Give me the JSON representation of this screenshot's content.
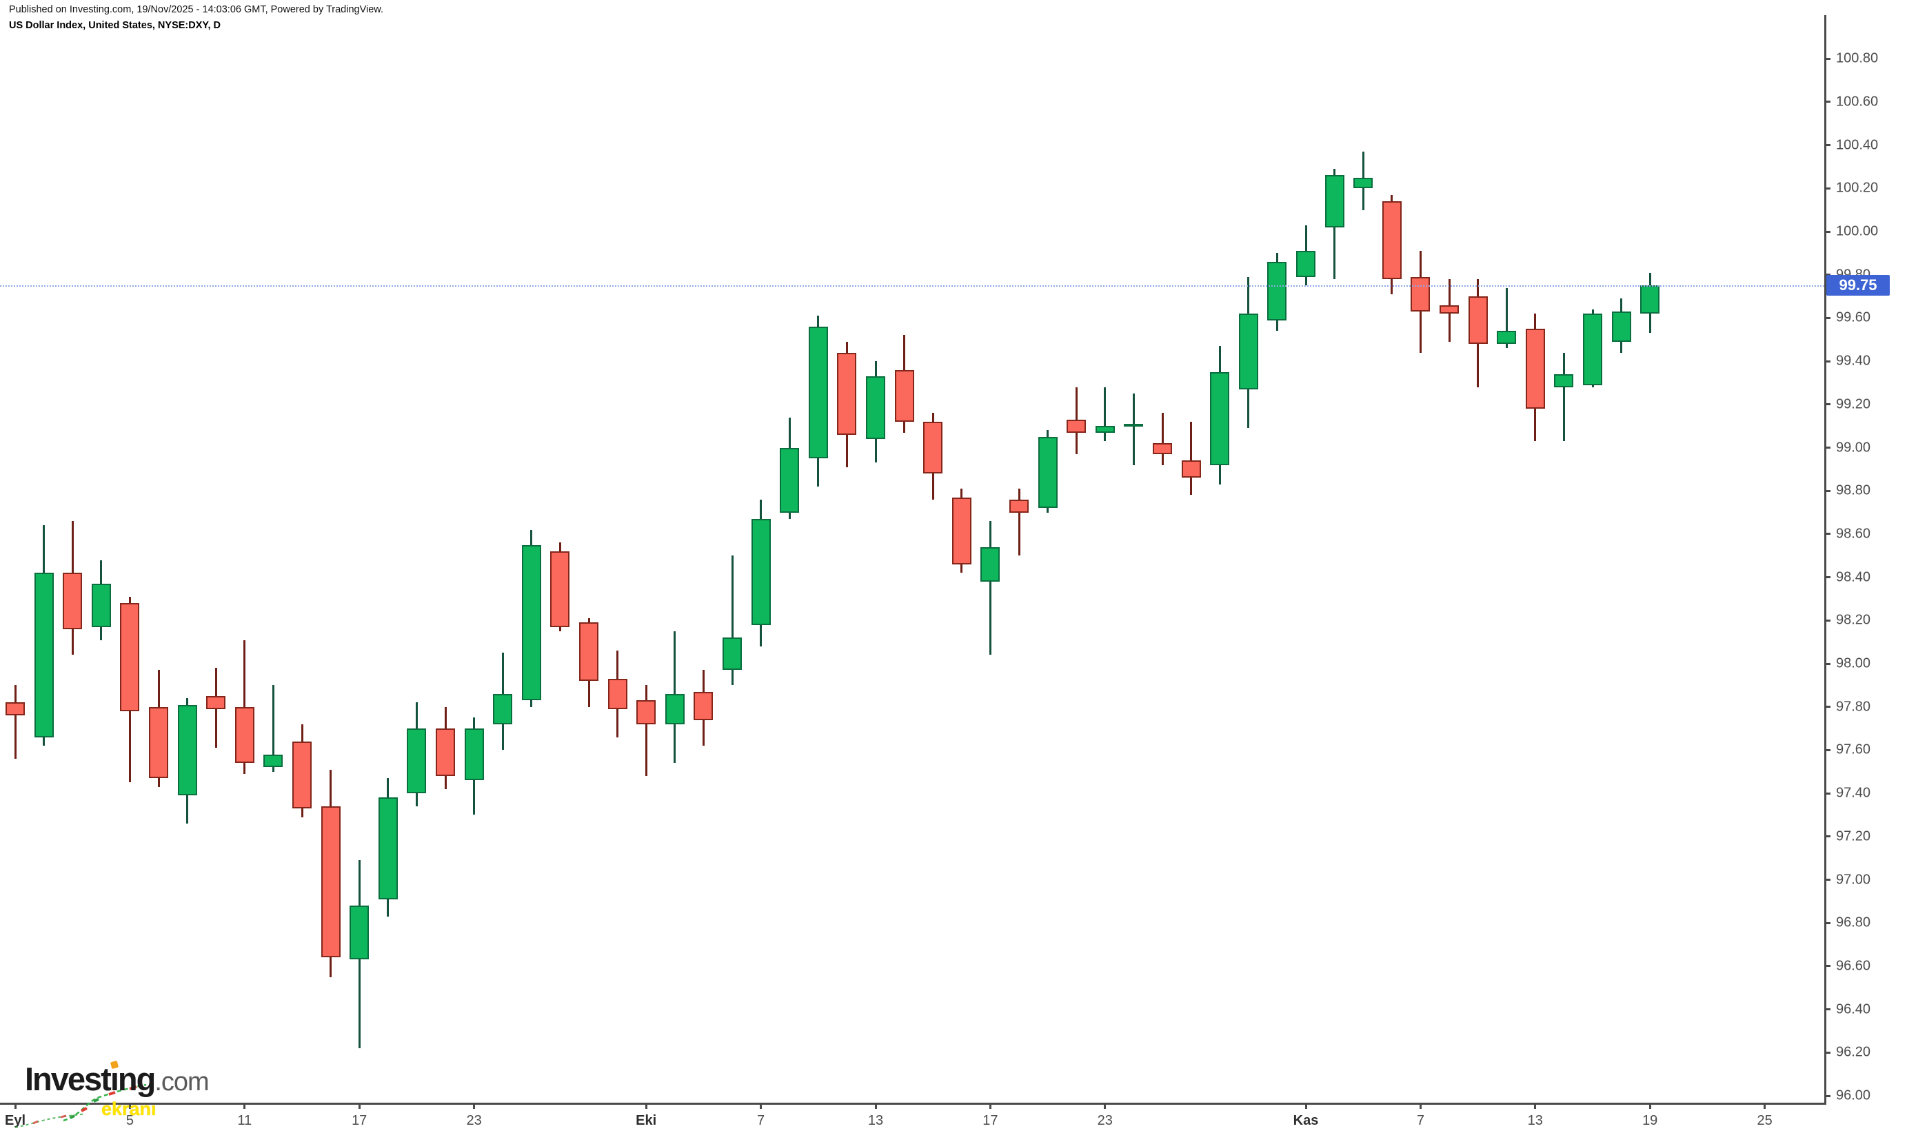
{
  "header": {
    "published_line": "Published on Investing.com, 19/Nov/2025 - 14:03:06 GMT, Powered by TradingView.",
    "instrument_line": "US Dollar Index, United States, NYSE:DXY, D"
  },
  "logo": {
    "main_text": "Investing",
    "suffix_text": ".com"
  },
  "watermark": {
    "text": "ekranı"
  },
  "price_label": {
    "value": "99.75"
  },
  "colors": {
    "up_body": "#0eb75b",
    "up_border": "#0a6e3f",
    "up_wick": "#14523c",
    "down_body": "#fb685c",
    "down_border": "#84261a",
    "down_wick": "#6e2017",
    "axis_line": "#4a4a4a",
    "badge_blue": "#3d63d4",
    "dotted_line": "#8fa8e6"
  },
  "chart_data": {
    "type": "candlestick",
    "title": "US Dollar Index, United States, NYSE:DXY, D",
    "symbol": "NYSE:DXY",
    "interval": "D",
    "legend_position": "none",
    "grid": false,
    "current_price": 99.75,
    "ylim": [
      96.0,
      100.8
    ],
    "y_tick_step": 0.2,
    "y_ticks": [
      "100.80",
      "100.60",
      "100.40",
      "100.20",
      "100.00",
      "99.80",
      "99.60",
      "99.40",
      "99.20",
      "99.00",
      "98.80",
      "98.60",
      "98.40",
      "98.20",
      "98.00",
      "97.80",
      "97.60",
      "97.40",
      "97.20",
      "97.00",
      "96.80",
      "96.60",
      "96.40",
      "96.20",
      "96.00"
    ],
    "x_ticks": [
      {
        "label": "Eyl",
        "index": 0,
        "bold": true
      },
      {
        "label": "5",
        "index": 4,
        "bold": false
      },
      {
        "label": "11",
        "index": 8,
        "bold": false
      },
      {
        "label": "17",
        "index": 12,
        "bold": false
      },
      {
        "label": "23",
        "index": 16,
        "bold": false
      },
      {
        "label": "Eki",
        "index": 22,
        "bold": true
      },
      {
        "label": "7",
        "index": 26,
        "bold": false
      },
      {
        "label": "13",
        "index": 30,
        "bold": false
      },
      {
        "label": "17",
        "index": 34,
        "bold": false
      },
      {
        "label": "23",
        "index": 38,
        "bold": false
      },
      {
        "label": "Kas",
        "index": 45,
        "bold": true
      },
      {
        "label": "7",
        "index": 49,
        "bold": false
      },
      {
        "label": "13",
        "index": 53,
        "bold": false
      },
      {
        "label": "19",
        "index": 57,
        "bold": false
      },
      {
        "label": "25",
        "index": 61,
        "bold": false
      }
    ],
    "total_slots": 64,
    "candles": [
      {
        "date": "2025-09-01",
        "o": 97.82,
        "h": 97.9,
        "l": 97.56,
        "c": 97.76
      },
      {
        "date": "2025-09-02",
        "o": 97.66,
        "h": 98.64,
        "l": 97.62,
        "c": 98.42
      },
      {
        "date": "2025-09-03",
        "o": 98.42,
        "h": 98.66,
        "l": 98.04,
        "c": 98.16
      },
      {
        "date": "2025-09-04",
        "o": 98.17,
        "h": 98.48,
        "l": 98.11,
        "c": 98.37
      },
      {
        "date": "2025-09-05",
        "o": 98.28,
        "h": 98.31,
        "l": 97.45,
        "c": 97.78
      },
      {
        "date": "2025-09-08",
        "o": 97.8,
        "h": 97.97,
        "l": 97.43,
        "c": 97.47
      },
      {
        "date": "2025-09-09",
        "o": 97.39,
        "h": 97.84,
        "l": 97.26,
        "c": 97.81
      },
      {
        "date": "2025-09-10",
        "o": 97.85,
        "h": 97.98,
        "l": 97.61,
        "c": 97.79
      },
      {
        "date": "2025-09-11",
        "o": 97.8,
        "h": 98.11,
        "l": 97.49,
        "c": 97.54
      },
      {
        "date": "2025-09-12",
        "o": 97.52,
        "h": 97.9,
        "l": 97.5,
        "c": 97.58
      },
      {
        "date": "2025-09-15",
        "o": 97.64,
        "h": 97.72,
        "l": 97.29,
        "c": 97.33
      },
      {
        "date": "2025-09-16",
        "o": 97.34,
        "h": 97.51,
        "l": 96.55,
        "c": 96.64
      },
      {
        "date": "2025-09-17",
        "o": 96.63,
        "h": 97.09,
        "l": 96.22,
        "c": 96.88
      },
      {
        "date": "2025-09-18",
        "o": 96.91,
        "h": 97.47,
        "l": 96.83,
        "c": 97.38
      },
      {
        "date": "2025-09-19",
        "o": 97.4,
        "h": 97.82,
        "l": 97.34,
        "c": 97.7
      },
      {
        "date": "2025-09-22",
        "o": 97.7,
        "h": 97.8,
        "l": 97.42,
        "c": 97.48
      },
      {
        "date": "2025-09-23",
        "o": 97.46,
        "h": 97.75,
        "l": 97.3,
        "c": 97.7
      },
      {
        "date": "2025-09-24",
        "o": 97.72,
        "h": 98.05,
        "l": 97.6,
        "c": 97.86
      },
      {
        "date": "2025-09-25",
        "o": 97.83,
        "h": 98.62,
        "l": 97.8,
        "c": 98.55
      },
      {
        "date": "2025-09-26",
        "o": 98.52,
        "h": 98.56,
        "l": 98.15,
        "c": 98.17
      },
      {
        "date": "2025-09-29",
        "o": 98.19,
        "h": 98.21,
        "l": 97.8,
        "c": 97.92
      },
      {
        "date": "2025-09-30",
        "o": 97.93,
        "h": 98.06,
        "l": 97.66,
        "c": 97.79
      },
      {
        "date": "2025-10-01",
        "o": 97.83,
        "h": 97.9,
        "l": 97.48,
        "c": 97.72
      },
      {
        "date": "2025-10-02",
        "o": 97.72,
        "h": 98.15,
        "l": 97.54,
        "c": 97.86
      },
      {
        "date": "2025-10-03",
        "o": 97.87,
        "h": 97.97,
        "l": 97.62,
        "c": 97.74
      },
      {
        "date": "2025-10-06",
        "o": 97.97,
        "h": 98.5,
        "l": 97.9,
        "c": 98.12
      },
      {
        "date": "2025-10-07",
        "o": 98.18,
        "h": 98.76,
        "l": 98.08,
        "c": 98.67
      },
      {
        "date": "2025-10-08",
        "o": 98.7,
        "h": 99.14,
        "l": 98.67,
        "c": 99.0
      },
      {
        "date": "2025-10-09",
        "o": 98.95,
        "h": 99.61,
        "l": 98.82,
        "c": 99.56
      },
      {
        "date": "2025-10-10",
        "o": 99.44,
        "h": 99.49,
        "l": 98.91,
        "c": 99.06
      },
      {
        "date": "2025-10-13",
        "o": 99.04,
        "h": 99.4,
        "l": 98.93,
        "c": 99.33
      },
      {
        "date": "2025-10-14",
        "o": 99.36,
        "h": 99.52,
        "l": 99.07,
        "c": 99.12
      },
      {
        "date": "2025-10-15",
        "o": 99.12,
        "h": 99.16,
        "l": 98.76,
        "c": 98.88
      },
      {
        "date": "2025-10-16",
        "o": 98.77,
        "h": 98.81,
        "l": 98.42,
        "c": 98.46
      },
      {
        "date": "2025-10-17",
        "o": 98.38,
        "h": 98.66,
        "l": 98.04,
        "c": 98.54
      },
      {
        "date": "2025-10-20",
        "o": 98.76,
        "h": 98.81,
        "l": 98.5,
        "c": 98.7
      },
      {
        "date": "2025-10-21",
        "o": 98.72,
        "h": 99.08,
        "l": 98.7,
        "c": 99.05
      },
      {
        "date": "2025-10-22",
        "o": 99.13,
        "h": 99.28,
        "l": 98.97,
        "c": 99.07
      },
      {
        "date": "2025-10-23",
        "o": 99.07,
        "h": 99.28,
        "l": 99.03,
        "c": 99.1
      },
      {
        "date": "2025-10-24",
        "o": 99.11,
        "h": 99.25,
        "l": 98.92,
        "c": 99.11
      },
      {
        "date": "2025-10-27",
        "o": 99.02,
        "h": 99.16,
        "l": 98.92,
        "c": 98.97
      },
      {
        "date": "2025-10-28",
        "o": 98.94,
        "h": 99.12,
        "l": 98.78,
        "c": 98.86
      },
      {
        "date": "2025-10-29",
        "o": 98.92,
        "h": 99.47,
        "l": 98.83,
        "c": 99.35
      },
      {
        "date": "2025-10-30",
        "o": 99.27,
        "h": 99.79,
        "l": 99.09,
        "c": 99.62
      },
      {
        "date": "2025-10-31",
        "o": 99.59,
        "h": 99.9,
        "l": 99.54,
        "c": 99.86
      },
      {
        "date": "2025-11-03",
        "o": 99.79,
        "h": 100.03,
        "l": 99.75,
        "c": 99.91
      },
      {
        "date": "2025-11-04",
        "o": 100.02,
        "h": 100.29,
        "l": 99.78,
        "c": 100.26
      },
      {
        "date": "2025-11-05",
        "o": 100.2,
        "h": 100.37,
        "l": 100.1,
        "c": 100.25
      },
      {
        "date": "2025-11-06",
        "o": 100.14,
        "h": 100.17,
        "l": 99.71,
        "c": 99.78
      },
      {
        "date": "2025-11-07",
        "o": 99.79,
        "h": 99.91,
        "l": 99.44,
        "c": 99.63
      },
      {
        "date": "2025-11-10",
        "o": 99.66,
        "h": 99.78,
        "l": 99.49,
        "c": 99.62
      },
      {
        "date": "2025-11-11",
        "o": 99.7,
        "h": 99.78,
        "l": 99.28,
        "c": 99.48
      },
      {
        "date": "2025-11-12",
        "o": 99.48,
        "h": 99.74,
        "l": 99.46,
        "c": 99.54
      },
      {
        "date": "2025-11-13",
        "o": 99.55,
        "h": 99.62,
        "l": 99.03,
        "c": 99.18
      },
      {
        "date": "2025-11-14",
        "o": 99.28,
        "h": 99.44,
        "l": 99.03,
        "c": 99.34
      },
      {
        "date": "2025-11-17",
        "o": 99.29,
        "h": 99.64,
        "l": 99.28,
        "c": 99.62
      },
      {
        "date": "2025-11-18",
        "o": 99.49,
        "h": 99.69,
        "l": 99.44,
        "c": 99.63
      },
      {
        "date": "2025-11-19",
        "o": 99.62,
        "h": 99.81,
        "l": 99.53,
        "c": 99.75
      }
    ]
  }
}
